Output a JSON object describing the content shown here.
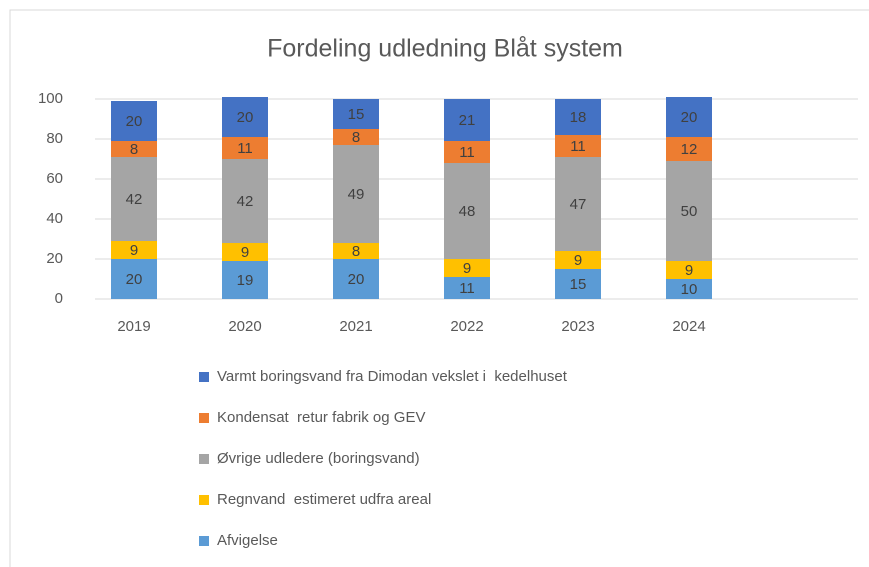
{
  "chart_data": {
    "type": "stacked_bar",
    "title": "Fordeling udledning Blåt system",
    "categories": [
      "2019",
      "2020",
      "2021",
      "2022",
      "2023",
      "2024"
    ],
    "series": [
      {
        "name": "Afvigelse",
        "color": "#5b9bd5",
        "values": [
          20,
          19,
          20,
          11,
          15,
          10
        ]
      },
      {
        "name": "Regnvand  estimeret udfra areal",
        "color": "#ffc000",
        "values": [
          9,
          9,
          8,
          9,
          9,
          9
        ]
      },
      {
        "name": "Øvrige udledere (boringsvand)",
        "color": "#a5a5a5",
        "values": [
          42,
          42,
          49,
          48,
          47,
          50
        ]
      },
      {
        "name": "Kondensat  retur fabrik og GEV",
        "color": "#ed7d31",
        "values": [
          8,
          11,
          8,
          11,
          11,
          12
        ]
      },
      {
        "name": "Varmt boringsvand fra Dimodan vekslet i  kedelhuset",
        "color": "#4472c4",
        "values": [
          20,
          20,
          15,
          21,
          18,
          20
        ]
      }
    ],
    "ylim": [
      0,
      100
    ],
    "yticks": [
      0,
      20,
      40,
      60,
      80,
      100
    ],
    "grid": true,
    "legend": "bottom"
  }
}
